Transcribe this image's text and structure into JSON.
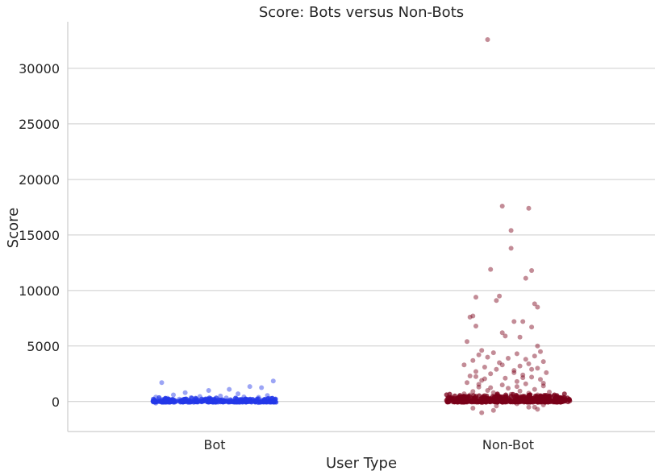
{
  "chart_data": {
    "type": "scatter",
    "title": "Score: Bots versus Non-Bots",
    "xlabel": "User Type",
    "ylabel": "Score",
    "categories": [
      "Bot",
      "Non-Bot"
    ],
    "ylim": [
      -2700,
      34200
    ],
    "yticks": [
      0,
      5000,
      10000,
      15000,
      20000,
      25000,
      30000
    ],
    "grid": "horizontal",
    "colors": {
      "Bot": "#2438e8",
      "Non-Bot": "#7a0019"
    },
    "series": [
      {
        "category": "Bot",
        "points": [
          [
            -0.18,
            1700
          ],
          [
            0.2,
            1850
          ],
          [
            0.05,
            1100
          ],
          [
            -0.02,
            1000
          ],
          [
            0.12,
            1350
          ],
          [
            0.16,
            1250
          ],
          [
            -0.1,
            800
          ],
          [
            0.08,
            700
          ],
          [
            -0.14,
            600
          ],
          [
            0.18,
            550
          ],
          [
            0.02,
            500
          ],
          [
            -0.05,
            450
          ],
          [
            0.1,
            420
          ],
          [
            -0.2,
            400
          ],
          [
            0.15,
            380
          ],
          [
            -0.08,
            350
          ],
          [
            0.04,
            330
          ],
          [
            -0.16,
            300
          ],
          [
            0.19,
            280
          ],
          [
            -0.03,
            260
          ],
          [
            0.07,
            240
          ],
          [
            -0.12,
            220
          ],
          [
            0.13,
            200
          ],
          [
            -0.19,
            180
          ],
          [
            0.0,
            170
          ],
          [
            0.17,
            160
          ],
          [
            -0.07,
            150
          ],
          [
            0.09,
            140
          ],
          [
            -0.15,
            130
          ],
          [
            0.11,
            120
          ],
          [
            -0.01,
            110
          ],
          [
            0.06,
            100
          ],
          [
            -0.11,
            90
          ],
          [
            0.14,
            80
          ],
          [
            -0.17,
            70
          ],
          [
            0.03,
            60
          ],
          [
            -0.04,
            50
          ],
          [
            0.18,
            40
          ],
          [
            -0.09,
            30
          ],
          [
            0.01,
            20
          ],
          [
            -0.13,
            10
          ],
          [
            0.2,
            0
          ],
          [
            -0.06,
            -20
          ],
          [
            0.1,
            -50
          ],
          [
            -0.2,
            -150
          ],
          [
            0.15,
            -100
          ],
          [
            -0.18,
            60
          ],
          [
            0.19,
            90
          ]
        ]
      },
      {
        "category": "Non-Bot",
        "points": [
          [
            -0.07,
            32600
          ],
          [
            -0.02,
            17600
          ],
          [
            0.07,
            17400
          ],
          [
            0.01,
            15400
          ],
          [
            0.01,
            13800
          ],
          [
            -0.06,
            11900
          ],
          [
            0.08,
            11800
          ],
          [
            0.06,
            11100
          ],
          [
            -0.11,
            9400
          ],
          [
            -0.03,
            9500
          ],
          [
            -0.04,
            9100
          ],
          [
            0.09,
            8800
          ],
          [
            0.1,
            8500
          ],
          [
            -0.12,
            7700
          ],
          [
            -0.13,
            7600
          ],
          [
            0.02,
            7200
          ],
          [
            0.05,
            7200
          ],
          [
            0.08,
            6700
          ],
          [
            -0.11,
            6800
          ],
          [
            -0.02,
            6200
          ],
          [
            0.04,
            5800
          ],
          [
            -0.14,
            5400
          ],
          [
            -0.01,
            5900
          ],
          [
            0.1,
            5000
          ],
          [
            0.11,
            4500
          ],
          [
            -0.09,
            4600
          ],
          [
            -0.05,
            4400
          ],
          [
            0.03,
            4300
          ],
          [
            0.09,
            4100
          ],
          [
            -0.1,
            4200
          ],
          [
            -0.07,
            4000
          ],
          [
            0.0,
            3900
          ],
          [
            0.06,
            3800
          ],
          [
            -0.12,
            3700
          ],
          [
            0.12,
            3600
          ],
          [
            -0.03,
            3500
          ],
          [
            0.07,
            3400
          ],
          [
            -0.15,
            3300
          ],
          [
            0.04,
            3200
          ],
          [
            -0.08,
            3100
          ],
          [
            0.1,
            3000
          ],
          [
            -0.04,
            2900
          ],
          [
            0.02,
            2800
          ],
          [
            -0.11,
            2700
          ],
          [
            0.13,
            2600
          ],
          [
            -0.06,
            2500
          ],
          [
            0.05,
            2400
          ],
          [
            -0.13,
            2300
          ],
          [
            0.08,
            2200
          ],
          [
            -0.01,
            2100
          ],
          [
            0.11,
            2000
          ],
          [
            -0.09,
            1900
          ],
          [
            0.03,
            1800
          ],
          [
            -0.14,
            1700
          ],
          [
            0.06,
            1600
          ],
          [
            -0.02,
            1500
          ],
          [
            0.12,
            1400
          ],
          [
            -0.1,
            1300
          ],
          [
            0.0,
            1200
          ],
          [
            0.09,
            1100
          ],
          [
            -0.07,
            1000
          ],
          [
            0.04,
            950
          ],
          [
            -0.12,
            900
          ],
          [
            0.14,
            850
          ],
          [
            -0.05,
            800
          ],
          [
            0.07,
            750
          ],
          [
            -0.15,
            700
          ],
          [
            0.01,
            650
          ],
          [
            0.1,
            600
          ],
          [
            -0.08,
            550
          ],
          [
            0.05,
            500
          ],
          [
            -0.03,
            450
          ],
          [
            0.13,
            400
          ],
          [
            -0.11,
            350
          ],
          [
            0.02,
            300
          ],
          [
            -0.06,
            250
          ],
          [
            0.08,
            200
          ],
          [
            -0.14,
            150
          ],
          [
            0.11,
            100
          ],
          [
            -0.01,
            50
          ],
          [
            0.06,
            0
          ],
          [
            -0.09,
            -100
          ],
          [
            0.03,
            -200
          ],
          [
            0.12,
            -300
          ],
          [
            -0.04,
            -400
          ],
          [
            0.09,
            -500
          ],
          [
            -0.12,
            -600
          ],
          [
            0.1,
            -700
          ],
          [
            -0.05,
            -800
          ],
          [
            -0.09,
            -1000
          ],
          [
            0.07,
            -500
          ],
          [
            -0.13,
            600
          ],
          [
            0.14,
            300
          ],
          [
            -0.16,
            200
          ],
          [
            0.15,
            100
          ],
          [
            -0.08,
            2050
          ],
          [
            0.05,
            2150
          ],
          [
            -0.1,
            1550
          ],
          [
            0.12,
            1650
          ],
          [
            0.02,
            2600
          ],
          [
            -0.02,
            3300
          ],
          [
            0.08,
            2900
          ],
          [
            -0.06,
            1250
          ],
          [
            0.03,
            1350
          ],
          [
            -0.11,
            2250
          ]
        ]
      }
    ]
  }
}
